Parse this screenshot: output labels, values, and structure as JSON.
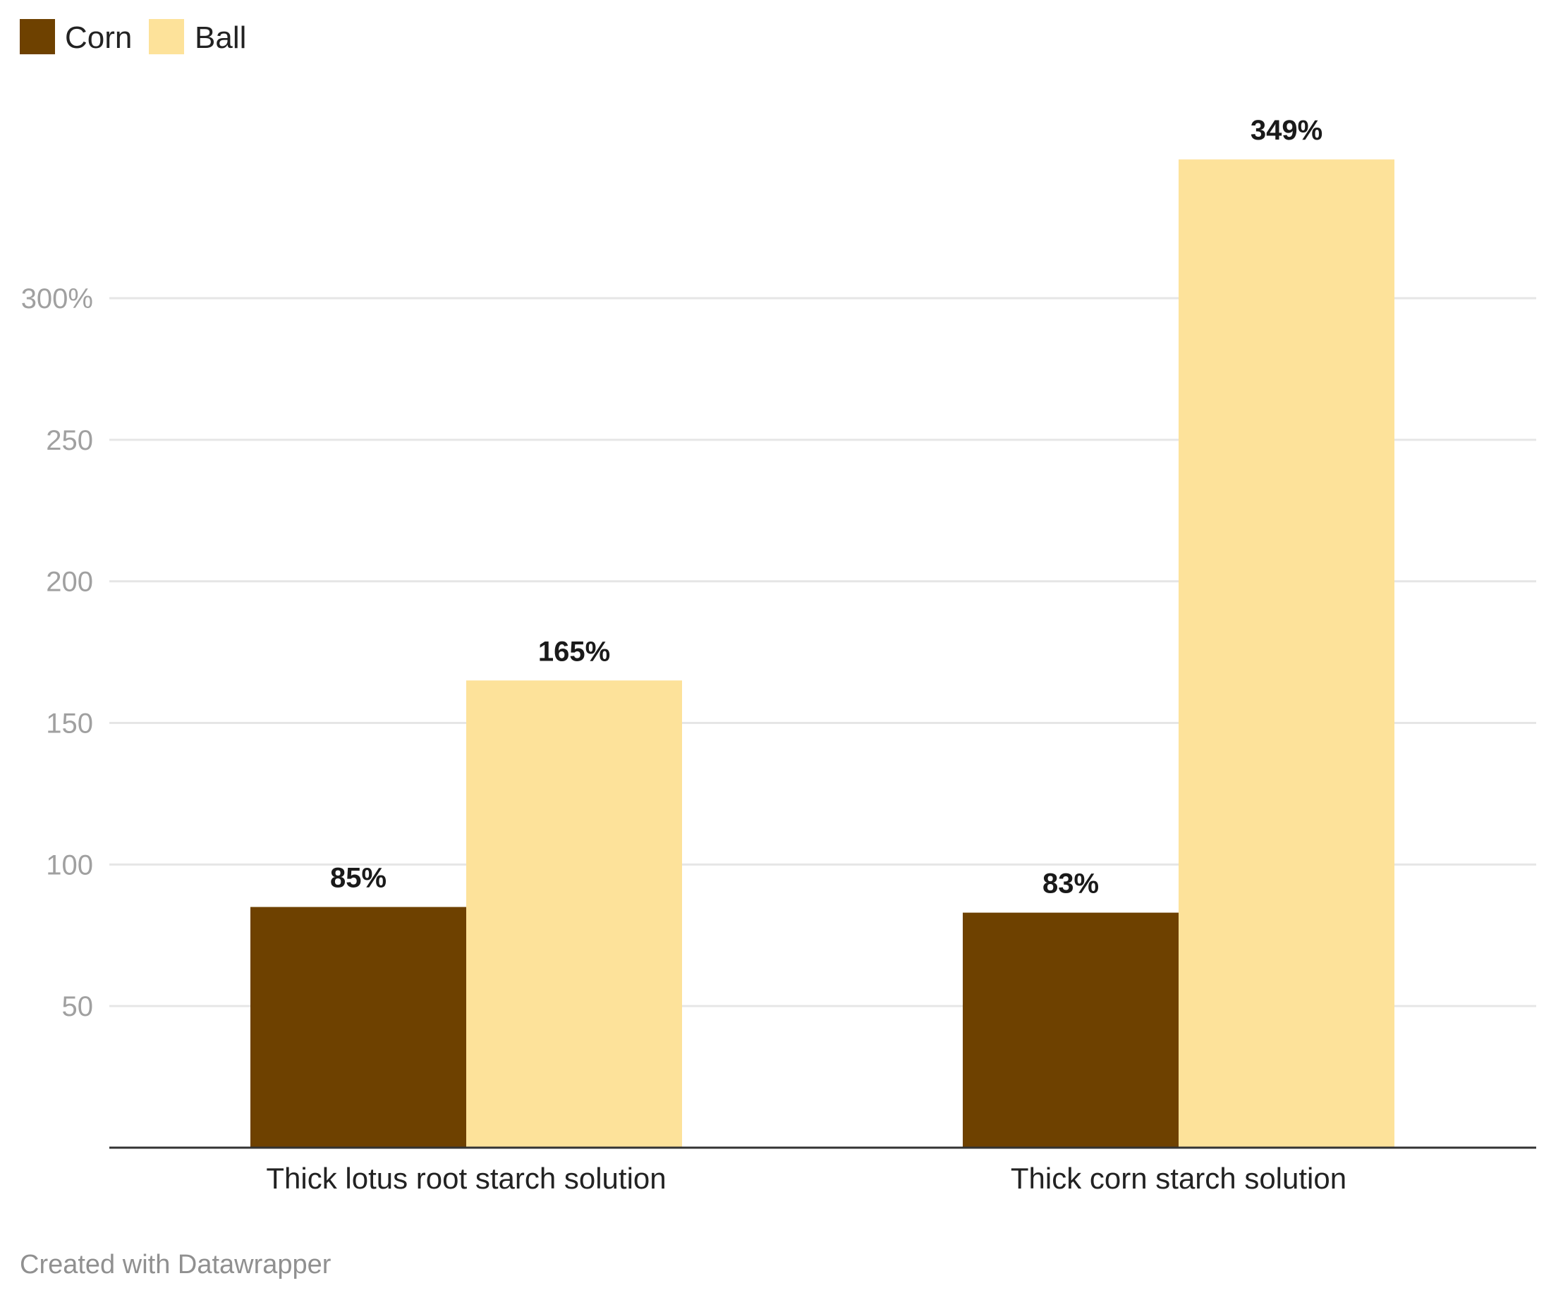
{
  "chart_data": {
    "type": "bar",
    "categories": [
      "Thick lotus root starch solution",
      "Thick corn starch solution"
    ],
    "series": [
      {
        "name": "Corn",
        "values": [
          85,
          83
        ],
        "color": "#6e4100",
        "labels": [
          "85%",
          "83%"
        ]
      },
      {
        "name": "Ball",
        "values": [
          165,
          349
        ],
        "color": "#fde29a",
        "labels": [
          "165%",
          "349%"
        ]
      }
    ],
    "yticks": [
      50,
      100,
      150,
      200,
      250,
      300
    ],
    "ytick_labels": [
      "50",
      "100",
      "150",
      "200",
      "250",
      "300%"
    ],
    "ylim": [
      0,
      349
    ],
    "grid": true,
    "legend_position": "top-left",
    "footer": "Created with Datawrapper"
  }
}
